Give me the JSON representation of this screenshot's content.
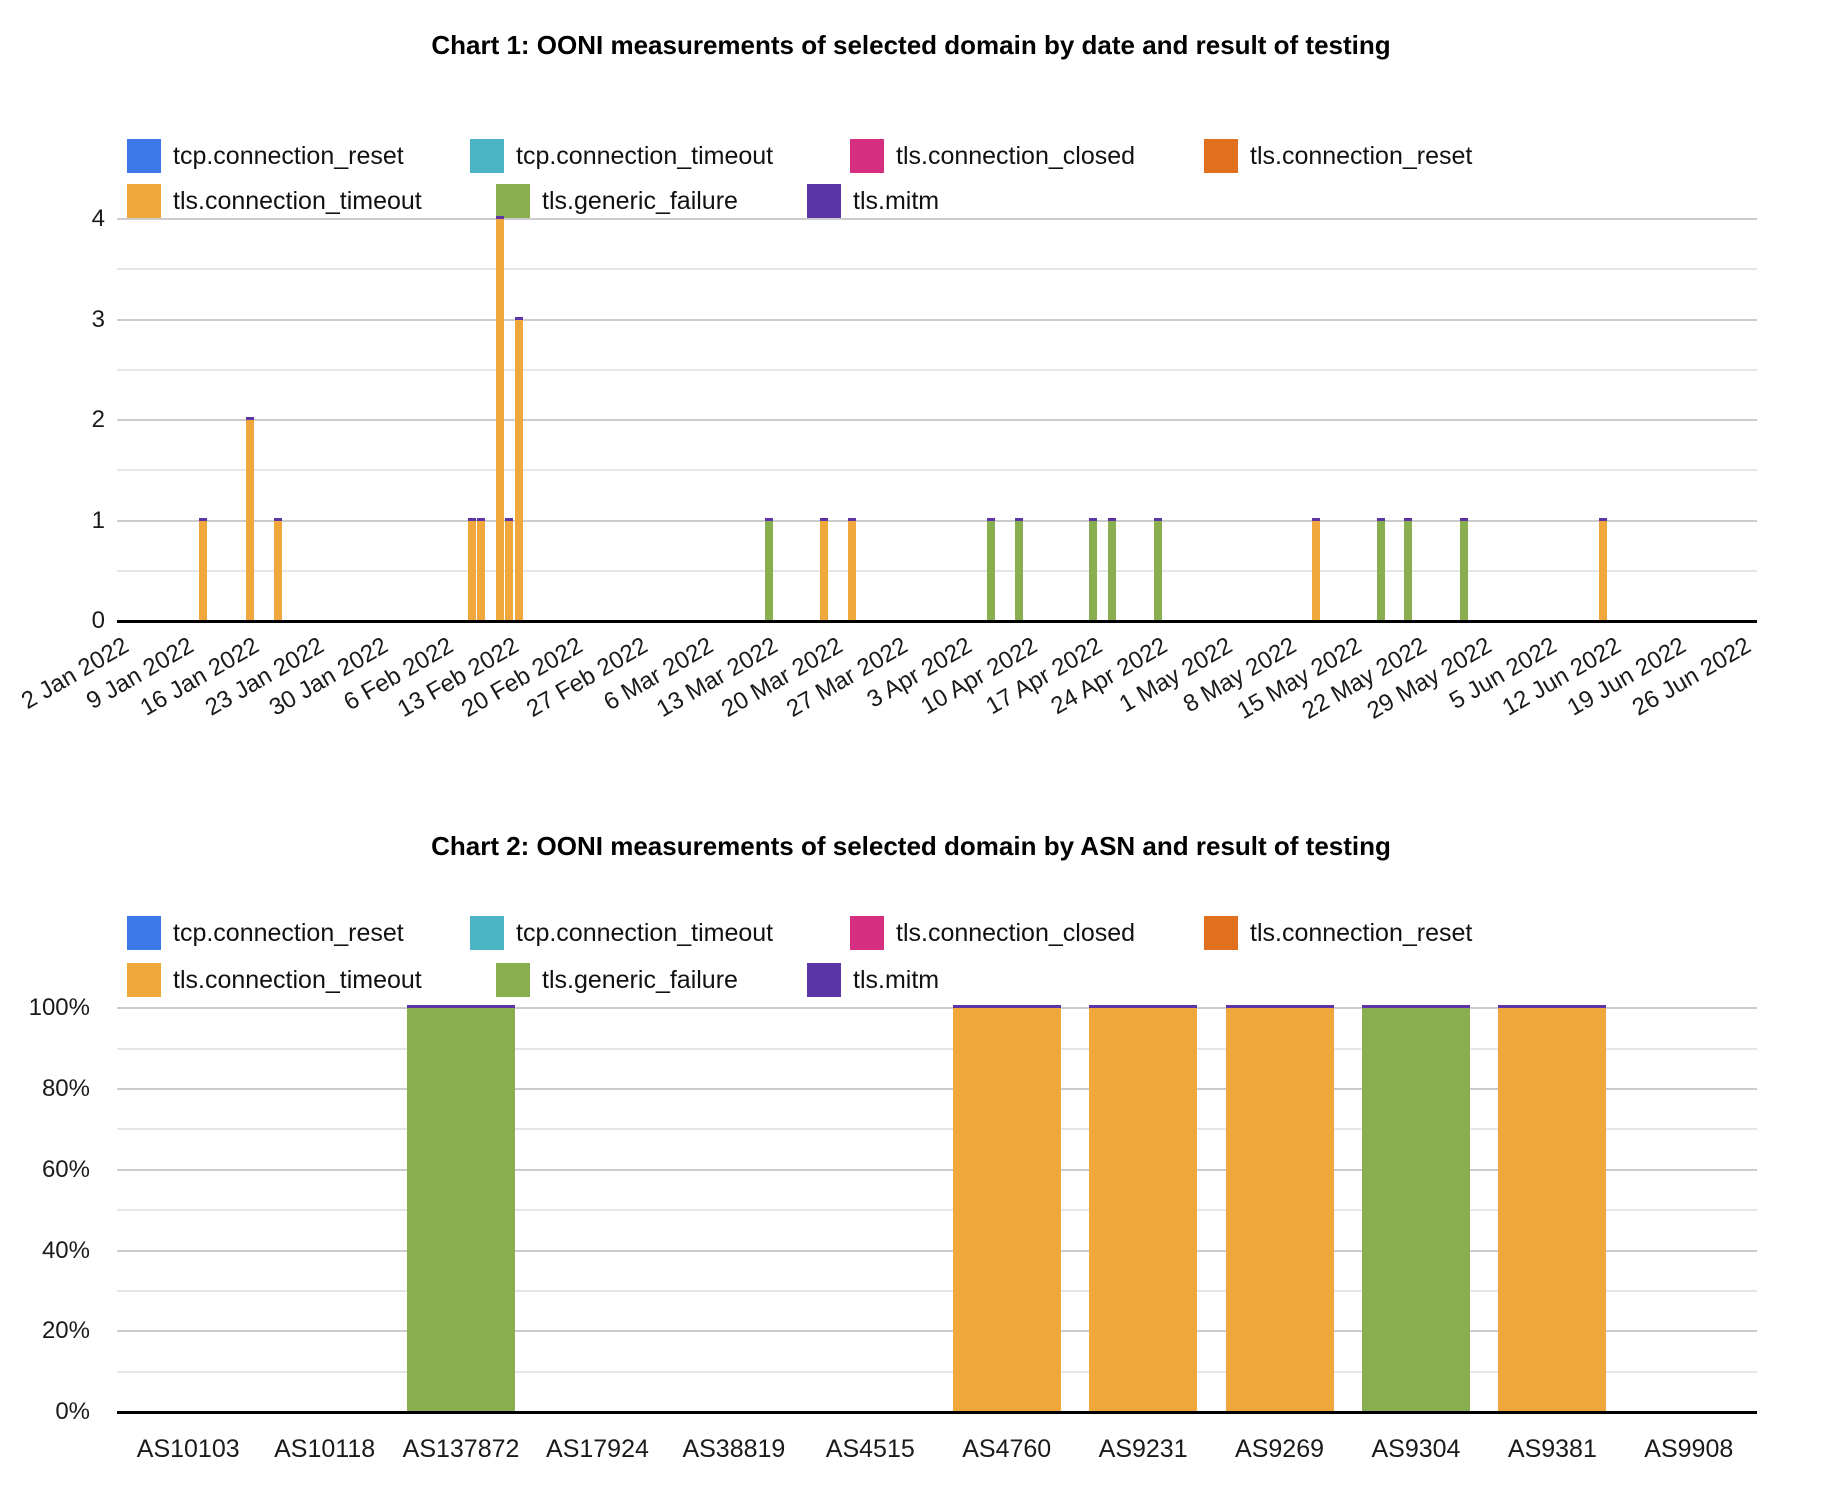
{
  "page": {
    "background": "#ffffff"
  },
  "legend": {
    "entries": [
      {
        "label": "tcp.connection_reset",
        "color": "#3b78e8"
      },
      {
        "label": "tcp.connection_timeout",
        "color": "#4cb5c5"
      },
      {
        "label": "tls.connection_closed",
        "color": "#d62f82"
      },
      {
        "label": "tls.connection_reset",
        "color": "#e1701e"
      },
      {
        "label": "tls.connection_timeout",
        "color": "#f0a83c"
      },
      {
        "label": "tls.generic_failure",
        "color": "#89ae4f"
      },
      {
        "label": "tls.mitm",
        "color": "#5b35a6"
      }
    ],
    "rows": [
      [
        0,
        1,
        2,
        3
      ],
      [
        4,
        5,
        6
      ]
    ]
  },
  "chart_data": [
    {
      "type": "bar",
      "title": "Chart 1: OONI measurements of selected domain by date and result of testing",
      "xlabel": "",
      "ylabel": "",
      "ylim": [
        0,
        4
      ],
      "grid": "on",
      "legend_position": "top",
      "y_axis": {
        "ticks": [
          "0",
          "1",
          "2",
          "3",
          "4"
        ]
      },
      "x_axis": {
        "ticks": [
          "2 Jan 2022",
          "9 Jan 2022",
          "16 Jan 2022",
          "23 Jan 2022",
          "30 Jan 2022",
          "6 Feb 2022",
          "13 Feb 2022",
          "20 Feb 2022",
          "27 Feb 2022",
          "6 Mar 2022",
          "13 Mar 2022",
          "20 Mar 2022",
          "27 Mar 2022",
          "3 Apr 2022",
          "10 Apr 2022",
          "17 Apr 2022",
          "24 Apr 2022",
          "1 May 2022",
          "8 May 2022",
          "15 May 2022",
          "22 May 2022",
          "29 May 2022",
          "5 Jun 2022",
          "12 Jun 2022",
          "19 Jun 2022",
          "26 Jun 2022"
        ]
      },
      "cap_series": "tls.mitm",
      "bars": [
        {
          "date": "11 Jan 2022",
          "day": 9,
          "value": 1,
          "series": "tls.connection_timeout"
        },
        {
          "date": "16 Jan 2022",
          "day": 14,
          "value": 2,
          "series": "tls.connection_timeout"
        },
        {
          "date": "19 Jan 2022",
          "day": 17,
          "value": 1,
          "series": "tls.connection_timeout"
        },
        {
          "date": "9 Feb 2022",
          "day": 38,
          "value": 1,
          "series": "tls.connection_timeout"
        },
        {
          "date": "10 Feb 2022",
          "day": 39,
          "value": 1,
          "series": "tls.connection_timeout"
        },
        {
          "date": "12 Feb 2022",
          "day": 41,
          "value": 4,
          "series": "tls.connection_timeout"
        },
        {
          "date": "13 Feb 2022",
          "day": 42,
          "value": 1,
          "series": "tls.connection_timeout"
        },
        {
          "date": "14 Feb 2022",
          "day": 43,
          "value": 3,
          "series": "tls.connection_timeout"
        },
        {
          "date": "13 Mar 2022",
          "day": 70,
          "value": 1,
          "series": "tls.generic_failure"
        },
        {
          "date": "19 Mar 2022",
          "day": 76,
          "value": 1,
          "series": "tls.connection_timeout"
        },
        {
          "date": "22 Mar 2022",
          "day": 79,
          "value": 1,
          "series": "tls.connection_timeout"
        },
        {
          "date": "6 Apr 2022",
          "day": 94,
          "value": 1,
          "series": "tls.generic_failure"
        },
        {
          "date": "9 Apr 2022",
          "day": 97,
          "value": 1,
          "series": "tls.generic_failure"
        },
        {
          "date": "17 Apr 2022",
          "day": 105,
          "value": 1,
          "series": "tls.generic_failure"
        },
        {
          "date": "19 Apr 2022",
          "day": 107,
          "value": 1,
          "series": "tls.generic_failure"
        },
        {
          "date": "24 Apr 2022",
          "day": 112,
          "value": 1,
          "series": "tls.generic_failure"
        },
        {
          "date": "11 May 2022",
          "day": 129,
          "value": 1,
          "series": "tls.connection_timeout"
        },
        {
          "date": "18 May 2022",
          "day": 136,
          "value": 1,
          "series": "tls.generic_failure"
        },
        {
          "date": "21 May 2022",
          "day": 139,
          "value": 1,
          "series": "tls.generic_failure"
        },
        {
          "date": "27 May 2022",
          "day": 145,
          "value": 1,
          "series": "tls.generic_failure"
        },
        {
          "date": "11 Jun 2022",
          "day": 160,
          "value": 1,
          "series": "tls.connection_timeout"
        }
      ]
    },
    {
      "type": "bar",
      "stacked": "percent",
      "title": "Chart 2: OONI measurements of selected domain by ASN and result of testing",
      "xlabel": "",
      "ylabel": "",
      "ylim_pct": [
        0,
        100
      ],
      "grid": "on",
      "y_axis": {
        "ticks": [
          "0%",
          "20%",
          "40%",
          "60%",
          "80%",
          "100%"
        ]
      },
      "categories": [
        "AS10103",
        "AS10118",
        "AS137872",
        "AS17924",
        "AS38819",
        "AS4515",
        "AS4760",
        "AS9231",
        "AS9269",
        "AS9304",
        "AS9381",
        "AS9908"
      ],
      "cap_series": "tls.mitm",
      "bars": [
        {
          "category": "AS137872",
          "series": "tls.generic_failure",
          "value_pct": 100
        },
        {
          "category": "AS4760",
          "series": "tls.connection_timeout",
          "value_pct": 100
        },
        {
          "category": "AS9231",
          "series": "tls.connection_timeout",
          "value_pct": 100
        },
        {
          "category": "AS9269",
          "series": "tls.connection_timeout",
          "value_pct": 100
        },
        {
          "category": "AS9304",
          "series": "tls.generic_failure",
          "value_pct": 100
        },
        {
          "category": "AS9381",
          "series": "tls.connection_timeout",
          "value_pct": 100
        }
      ]
    }
  ]
}
